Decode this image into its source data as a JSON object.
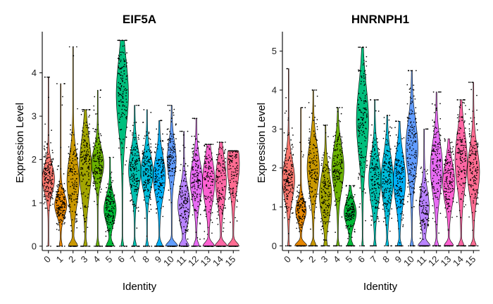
{
  "chart_data": [
    {
      "type": "violin",
      "title": "EIF5A",
      "xlabel": "Identity",
      "ylabel": "Expression Level",
      "categories": [
        "0",
        "1",
        "2",
        "3",
        "4",
        "5",
        "6",
        "7",
        "8",
        "9",
        "10",
        "11",
        "12",
        "13",
        "14",
        "15"
      ],
      "yticks": [
        0,
        1,
        2,
        3,
        4
      ],
      "ylim": [
        -0.1,
        4.95
      ],
      "series": [
        {
          "category": "0",
          "max": 3.9,
          "mode": 1.55,
          "median": 1.55,
          "spread": 0.32,
          "fraction_zero": 0.02
        },
        {
          "category": "1",
          "max": 3.75,
          "mode": 0.95,
          "median": 0.95,
          "spread": 0.25,
          "fraction_zero": 0.1
        },
        {
          "category": "2",
          "max": 4.6,
          "mode": 1.5,
          "median": 1.45,
          "spread": 0.55,
          "fraction_zero": 0.3
        },
        {
          "category": "3",
          "max": 3.15,
          "mode": 1.8,
          "median": 1.6,
          "spread": 0.65,
          "fraction_zero": 0.12
        },
        {
          "category": "4",
          "max": 3.6,
          "mode": 1.9,
          "median": 1.85,
          "spread": 0.35,
          "fraction_zero": 0.12
        },
        {
          "category": "5",
          "max": 2.05,
          "mode": 0.85,
          "median": 0.9,
          "spread": 0.3,
          "fraction_zero": 0.25
        },
        {
          "category": "6",
          "max": 4.75,
          "mode": 3.5,
          "median": 3.0,
          "spread": 0.8,
          "fraction_zero": 0.1
        },
        {
          "category": "7",
          "max": 3.25,
          "mode": 1.75,
          "median": 1.75,
          "spread": 0.45,
          "fraction_zero": 0.12
        },
        {
          "category": "8",
          "max": 3.15,
          "mode": 1.7,
          "median": 1.7,
          "spread": 0.4,
          "fraction_zero": 0.1
        },
        {
          "category": "9",
          "max": 2.9,
          "mode": 1.6,
          "median": 1.5,
          "spread": 0.45,
          "fraction_zero": 0.22
        },
        {
          "category": "10",
          "max": 3.25,
          "mode": 2.0,
          "median": 2.0,
          "spread": 0.4,
          "fraction_zero": 0.45
        },
        {
          "category": "11",
          "max": 2.65,
          "mode": 0.95,
          "median": 0.95,
          "spread": 0.4,
          "fraction_zero": 0.3
        },
        {
          "category": "12",
          "max": 2.95,
          "mode": 1.5,
          "median": 1.4,
          "spread": 0.45,
          "fraction_zero": 0.2
        },
        {
          "category": "13",
          "max": 2.35,
          "mode": 1.5,
          "median": 1.4,
          "spread": 0.5,
          "fraction_zero": 0.35
        },
        {
          "category": "14",
          "max": 2.4,
          "mode": 1.5,
          "median": 1.4,
          "spread": 0.5,
          "fraction_zero": 0.4
        },
        {
          "category": "15",
          "max": 2.2,
          "mode": 1.9,
          "median": 1.6,
          "spread": 0.55,
          "fraction_zero": 0.35
        }
      ]
    },
    {
      "type": "violin",
      "title": "HNRNPH1",
      "xlabel": "Identity",
      "ylabel": "Expression Level",
      "categories": [
        "0",
        "1",
        "2",
        "3",
        "4",
        "5",
        "6",
        "7",
        "8",
        "9",
        "10",
        "11",
        "12",
        "13",
        "14",
        "15"
      ],
      "yticks": [
        0,
        1,
        2,
        3,
        4,
        5
      ],
      "ylim": [
        -0.12,
        5.5
      ],
      "series": [
        {
          "category": "0",
          "max": 4.55,
          "mode": 1.7,
          "median": 1.8,
          "spread": 0.5,
          "fraction_zero": 0.05
        },
        {
          "category": "1",
          "max": 3.55,
          "mode": 0.9,
          "median": 0.9,
          "spread": 0.25,
          "fraction_zero": 0.4
        },
        {
          "category": "2",
          "max": 4.0,
          "mode": 2.0,
          "median": 1.9,
          "spread": 0.6,
          "fraction_zero": 0.2
        },
        {
          "category": "3",
          "max": 3.1,
          "mode": 1.3,
          "median": 1.3,
          "spread": 0.55,
          "fraction_zero": 0.1
        },
        {
          "category": "4",
          "max": 3.55,
          "mode": 2.0,
          "median": 2.1,
          "spread": 0.55,
          "fraction_zero": 0.1
        },
        {
          "category": "5",
          "max": 1.55,
          "mode": 0.85,
          "median": 0.85,
          "spread": 0.3,
          "fraction_zero": 0.2
        },
        {
          "category": "6",
          "max": 5.1,
          "mode": 3.2,
          "median": 3.1,
          "spread": 0.9,
          "fraction_zero": 0.05
        },
        {
          "category": "7",
          "max": 3.75,
          "mode": 1.7,
          "median": 1.8,
          "spread": 0.6,
          "fraction_zero": 0.08
        },
        {
          "category": "8",
          "max": 3.35,
          "mode": 1.7,
          "median": 1.8,
          "spread": 0.6,
          "fraction_zero": 0.1
        },
        {
          "category": "9",
          "max": 3.2,
          "mode": 1.7,
          "median": 1.6,
          "spread": 0.6,
          "fraction_zero": 0.15
        },
        {
          "category": "10",
          "max": 4.5,
          "mode": 2.5,
          "median": 2.3,
          "spread": 0.7,
          "fraction_zero": 0.12
        },
        {
          "category": "11",
          "max": 3.0,
          "mode": 1.0,
          "median": 1.0,
          "spread": 0.45,
          "fraction_zero": 0.4
        },
        {
          "category": "12",
          "max": 3.95,
          "mode": 2.0,
          "median": 1.9,
          "spread": 0.65,
          "fraction_zero": 0.15
        },
        {
          "category": "13",
          "max": 2.75,
          "mode": 1.6,
          "median": 1.6,
          "spread": 0.5,
          "fraction_zero": 0.3
        },
        {
          "category": "14",
          "max": 3.75,
          "mode": 2.2,
          "median": 2.0,
          "spread": 0.7,
          "fraction_zero": 0.2
        },
        {
          "category": "15",
          "max": 4.2,
          "mode": 1.9,
          "median": 2.0,
          "spread": 0.6,
          "fraction_zero": 0.2
        }
      ]
    }
  ],
  "colors": [
    "#F8766D",
    "#E58700",
    "#C99800",
    "#A3A500",
    "#6BB100",
    "#00BA38",
    "#00BF7D",
    "#00C0AF",
    "#00BCD8",
    "#00B0F6",
    "#619CFF",
    "#B983FF",
    "#E76BF3",
    "#FD61D1",
    "#FF67A4",
    "#FF6C91"
  ]
}
